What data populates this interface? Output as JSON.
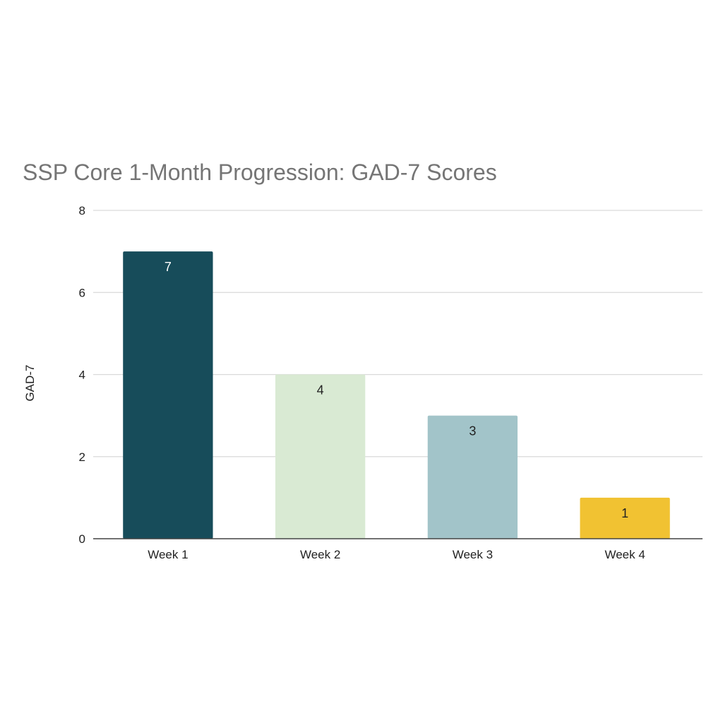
{
  "chart_data": {
    "type": "bar",
    "title": "SSP Core 1-Month Progression: GAD-7 Scores",
    "xlabel": "",
    "ylabel": "GAD-7",
    "categories": [
      "Week 1",
      "Week 2",
      "Week 3",
      "Week 4"
    ],
    "values": [
      7,
      4,
      3,
      1
    ],
    "data_labels": [
      "7",
      "4",
      "3",
      "1"
    ],
    "bar_colors": [
      "#174c5a",
      "#d9ead3",
      "#a2c4c9",
      "#f1c232"
    ],
    "data_label_colors": [
      "#ffffff",
      "#222222",
      "#222222",
      "#222222"
    ],
    "ylim": [
      0,
      8
    ],
    "yticks": [
      0,
      2,
      4,
      6,
      8
    ],
    "grid": true,
    "legend": "none"
  }
}
